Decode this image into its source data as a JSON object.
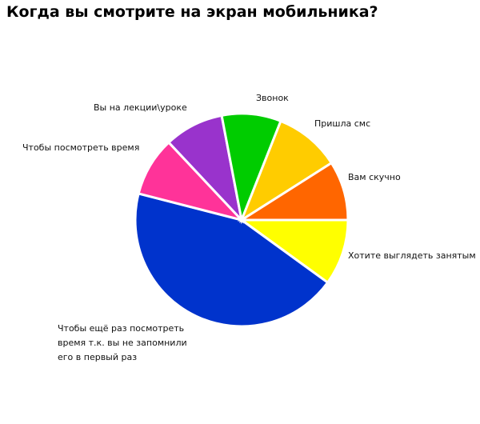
{
  "chart_data": {
    "type": "pie",
    "title": "Когда вы смотрите на экран мобильника?",
    "categories": [
      "Хотите выглядеть занятым",
      "Чтобы ещё раз посмотреть\nвремя т.к. вы не запомнили\nего в первый раз",
      "Чтобы посмотреть время",
      "Вы на лекции\\уроке",
      "Звонок",
      "Пришла смс",
      "Вам скучно"
    ],
    "values": [
      10,
      44,
      9,
      9,
      9,
      10,
      9
    ],
    "colors": [
      "#ffff00",
      "#0033cc",
      "#ff3399",
      "#9933cc",
      "#00cc00",
      "#ffcc00",
      "#ff6600"
    ]
  }
}
